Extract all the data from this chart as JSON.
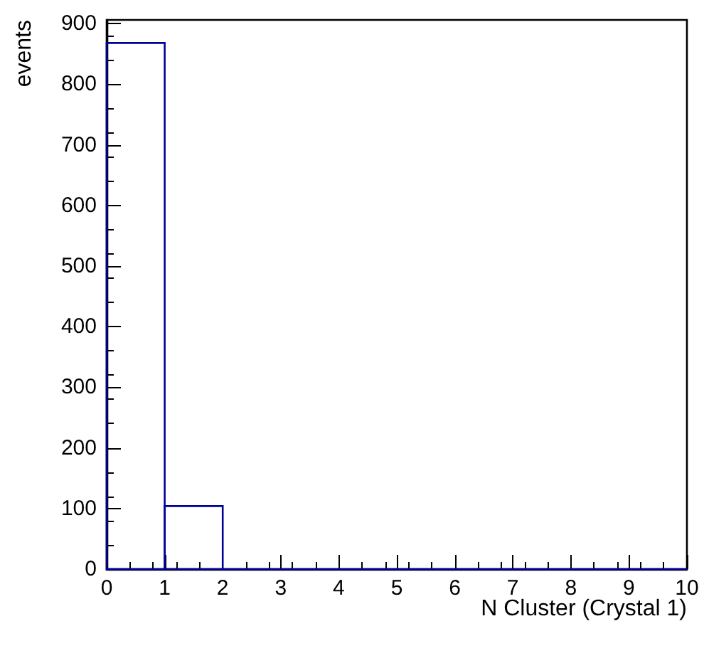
{
  "chart_data": {
    "type": "histogram",
    "xlabel": "N Cluster (Crystal 1)",
    "ylabel": "events",
    "bins": [
      0,
      1,
      2,
      3,
      4,
      5,
      6,
      7,
      8,
      9,
      10
    ],
    "values": [
      868,
      104,
      0,
      0,
      0,
      0,
      0,
      0,
      0,
      0
    ],
    "color": "#000099",
    "xlim": [
      0,
      10
    ],
    "xticks": [
      0,
      1,
      2,
      3,
      4,
      5,
      6,
      7,
      8,
      9,
      10
    ],
    "ylim": [
      0,
      906
    ],
    "yticks": [
      0,
      100,
      200,
      300,
      400,
      500,
      600,
      700,
      800,
      900
    ],
    "grid": false
  }
}
